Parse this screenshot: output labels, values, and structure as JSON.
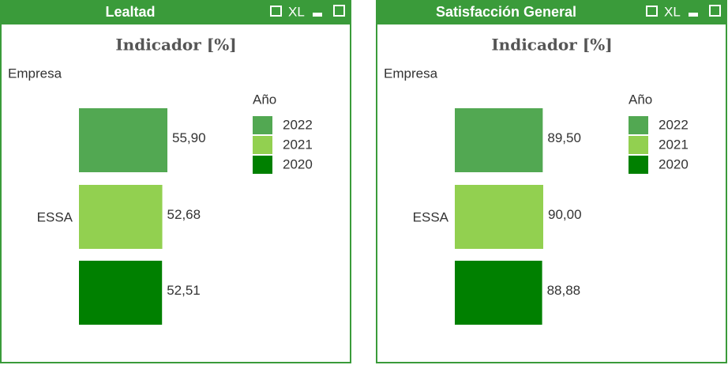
{
  "chart_data": [
    {
      "type": "bar",
      "panel_title": "Lealtad",
      "toolbar_label": "XL",
      "title": "Indicador [%]",
      "y_label": "Empresa",
      "legend_title": "Año",
      "categories": [
        "ESSA"
      ],
      "series": [
        {
          "name": "2022",
          "color": "#52a852",
          "values": [
            55.9
          ],
          "value_labels": [
            "55,90"
          ]
        },
        {
          "name": "2021",
          "color": "#92d050",
          "values": [
            52.68
          ],
          "value_labels": [
            "52,68"
          ]
        },
        {
          "name": "2020",
          "color": "#008000",
          "values": [
            52.51
          ],
          "value_labels": [
            "52,51"
          ]
        }
      ]
    },
    {
      "type": "bar",
      "panel_title": "Satisfacción General",
      "toolbar_label": "XL",
      "title": "Indicador [%]",
      "y_label": "Empresa",
      "legend_title": "Año",
      "categories": [
        "ESSA"
      ],
      "series": [
        {
          "name": "2022",
          "color": "#52a852",
          "values": [
            89.5
          ],
          "value_labels": [
            "89,50"
          ]
        },
        {
          "name": "2021",
          "color": "#92d050",
          "values": [
            90.0
          ],
          "value_labels": [
            "90,00"
          ]
        },
        {
          "name": "2020",
          "color": "#008000",
          "values": [
            88.88
          ],
          "value_labels": [
            "88,88"
          ]
        }
      ]
    }
  ]
}
